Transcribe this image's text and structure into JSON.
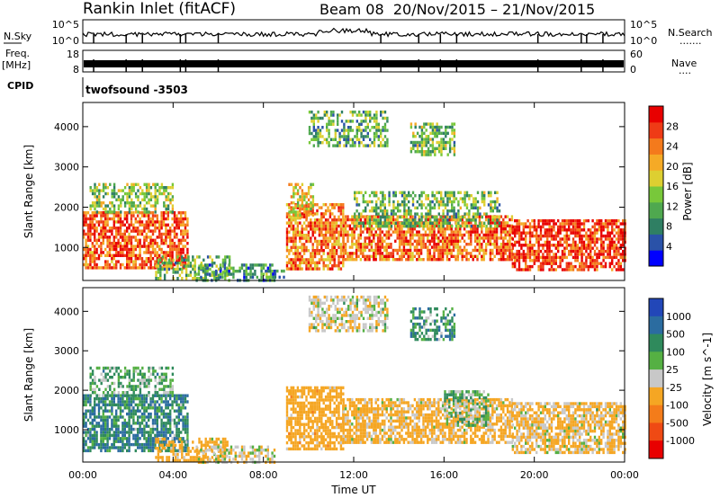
{
  "header": {
    "title": "Rankin Inlet (fitACF)",
    "beam": "Beam 08",
    "dates": "20/Nov/2015 – 21/Nov/2015"
  },
  "noise_panel": {
    "left_label": "N.Sky",
    "right_label": "N.Search",
    "right_sub": ".......",
    "left_ticks": [
      "10^5",
      "10^0"
    ],
    "right_ticks": [
      "10^5",
      "10^0"
    ]
  },
  "freq_panel": {
    "left_label_1": "Freq.",
    "left_label_2": "[MHz]",
    "right_label": "Nave",
    "right_sub": "....",
    "left_ticks": [
      "18",
      "8"
    ],
    "right_ticks": [
      "60",
      "0"
    ]
  },
  "cpid": {
    "label": "CPID",
    "value": "twofsound -3503"
  },
  "chart_data": [
    {
      "type": "heatmap",
      "name": "Power",
      "ylabel": "Slant Range [km]",
      "xlabel": "",
      "ylim": [
        180,
        4600
      ],
      "yticks": [
        "1000",
        "2000",
        "3000",
        "4000"
      ],
      "xlim_hours": [
        0,
        24
      ],
      "colorbar": {
        "label": "Power [dB]",
        "ticks": [
          "4",
          "8",
          "12",
          "16",
          "20",
          "24",
          "28"
        ],
        "range": [
          0,
          32
        ],
        "colors": [
          "#0000ff",
          "#2a52a8",
          "#2f7f63",
          "#4fa84f",
          "#78c83a",
          "#ddcf31",
          "#f5aa26",
          "#f47a1c",
          "#ef3b16",
          "#e80000"
        ]
      },
      "regions": [
        {
          "t0": 0.0,
          "t1": 4.6,
          "r0": 500,
          "r1": 1900,
          "level": 26
        },
        {
          "t0": 0.3,
          "t1": 4.0,
          "r0": 1900,
          "r1": 2600,
          "level": 14
        },
        {
          "t0": 3.2,
          "t1": 6.5,
          "r0": 250,
          "r1": 800,
          "level": 12
        },
        {
          "t0": 5.0,
          "t1": 8.5,
          "r0": 200,
          "r1": 600,
          "level": 9
        },
        {
          "t0": 8.0,
          "t1": 9.0,
          "r0": 250,
          "r1": 450,
          "level": 10
        },
        {
          "t0": 9.0,
          "t1": 11.5,
          "r0": 500,
          "r1": 2100,
          "level": 24
        },
        {
          "t0": 9.1,
          "t1": 10.2,
          "r0": 1700,
          "r1": 2600,
          "level": 18
        },
        {
          "t0": 11.5,
          "t1": 19.0,
          "r0": 700,
          "r1": 1800,
          "level": 25
        },
        {
          "t0": 12.0,
          "t1": 18.5,
          "r0": 1500,
          "r1": 2400,
          "level": 13
        },
        {
          "t0": 19.0,
          "t1": 24.0,
          "r0": 450,
          "r1": 1700,
          "level": 28
        },
        {
          "t0": 10.0,
          "t1": 13.5,
          "r0": 3500,
          "r1": 4400,
          "level": 12
        },
        {
          "t0": 14.5,
          "t1": 16.5,
          "r0": 3300,
          "r1": 4100,
          "level": 13
        }
      ]
    },
    {
      "type": "heatmap",
      "name": "Velocity",
      "ylabel": "Slant Range [km]",
      "xlabel": "Time UT",
      "ylim": [
        180,
        4600
      ],
      "yticks": [
        "1000",
        "2000",
        "3000",
        "4000"
      ],
      "xticks": [
        "00:00",
        "04:00",
        "08:00",
        "12:00",
        "16:00",
        "20:00",
        "00:00"
      ],
      "xlim_hours": [
        0,
        24
      ],
      "colorbar": {
        "label": "Velocity [m s^-1]",
        "ticks": [
          "1000",
          "500",
          "100",
          "25",
          "-25",
          "-100",
          "-500",
          "-1000"
        ],
        "colors": [
          "#2247b8",
          "#2b6ca0",
          "#2f8a5c",
          "#55b043",
          "#c8c8c8",
          "#f5a623",
          "#f47c1a",
          "#ef4a14",
          "#e80000"
        ]
      },
      "regions": [
        {
          "t0": 0.0,
          "t1": 4.6,
          "r0": 500,
          "r1": 1900,
          "level": 90
        },
        {
          "t0": 0.3,
          "t1": 4.0,
          "r0": 1900,
          "r1": 2600,
          "level": 20
        },
        {
          "t0": 3.2,
          "t1": 6.5,
          "r0": 250,
          "r1": 800,
          "level": -200
        },
        {
          "t0": 5.0,
          "t1": 8.5,
          "r0": 200,
          "r1": 600,
          "level": -80
        },
        {
          "t0": 9.0,
          "t1": 11.5,
          "r0": 500,
          "r1": 2100,
          "level": -300
        },
        {
          "t0": 11.5,
          "t1": 19.0,
          "r0": 700,
          "r1": 1800,
          "level": -150
        },
        {
          "t0": 16.0,
          "t1": 18.0,
          "r0": 1100,
          "r1": 2000,
          "level": 0
        },
        {
          "t0": 19.0,
          "t1": 24.0,
          "r0": 450,
          "r1": 1700,
          "level": -120
        },
        {
          "t0": 10.0,
          "t1": 13.5,
          "r0": 3500,
          "r1": 4400,
          "level": -80
        },
        {
          "t0": 14.5,
          "t1": 16.5,
          "r0": 3300,
          "r1": 4100,
          "level": 60
        }
      ]
    }
  ]
}
